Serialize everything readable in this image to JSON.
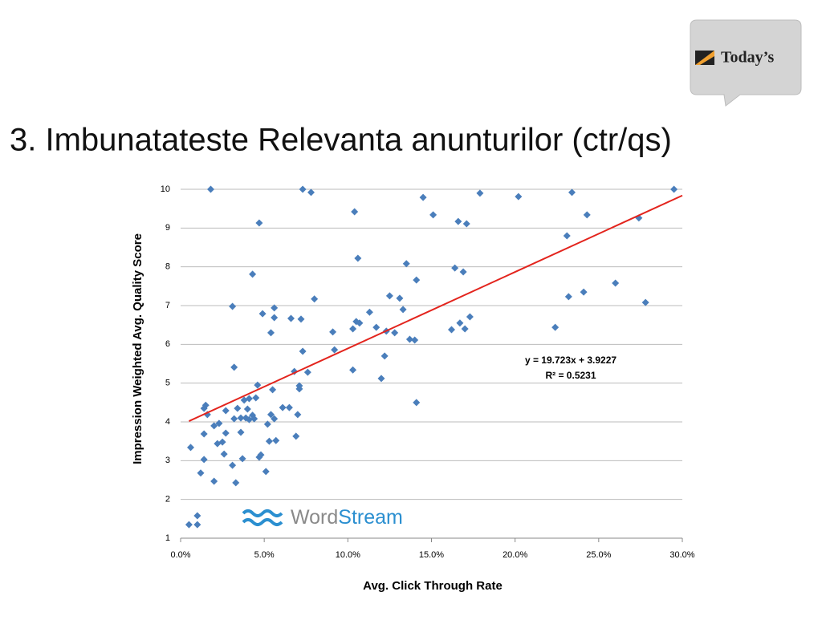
{
  "slide_title": "3. Imbunatateste Relevanta anunturilor (ctr/qs)",
  "logo_text": "Today’s",
  "watermark": [
    "Word",
    "Stream"
  ],
  "chart_data": {
    "type": "scatter",
    "x_label": "Avg. Click Through Rate",
    "y_label": "Impression Weighted Avg. Quality Score",
    "xlim": [
      0,
      30
    ],
    "ylim": [
      1,
      10
    ],
    "xticks": [
      {
        "value": 0,
        "label": "0.0%"
      },
      {
        "value": 5,
        "label": "5.0%"
      },
      {
        "value": 10,
        "label": "10.0%"
      },
      {
        "value": 15,
        "label": "15.0%"
      },
      {
        "value": 20,
        "label": "20.0%"
      },
      {
        "value": 25,
        "label": "25.0%"
      },
      {
        "value": 30,
        "label": "30.0%"
      }
    ],
    "yticks": [
      1,
      2,
      3,
      4,
      5,
      6,
      7,
      8,
      9,
      10
    ],
    "grid": true,
    "annotations": [
      "y = 19.723x + 3.9227",
      "R² = 0.5231"
    ],
    "series": [
      {
        "color": "#4a7ebb",
        "x": [
          0.5,
          1.0,
          1.0,
          0.6,
          1.2,
          1.4,
          1.4,
          1.4,
          1.5,
          1.6,
          1.8,
          2.0,
          2.0,
          2.2,
          2.3,
          2.5,
          2.6,
          2.7,
          2.7,
          3.1,
          3.1,
          3.2,
          3.3,
          3.2,
          3.4,
          3.6,
          3.6,
          3.7,
          3.8,
          3.9,
          4.0,
          4.1,
          4.1,
          4.3,
          4.3,
          4.4,
          4.5,
          4.6,
          4.7,
          4.8,
          4.7,
          4.9,
          5.1,
          5.2,
          5.4,
          5.3,
          5.4,
          5.5,
          5.6,
          5.6,
          5.6,
          5.7,
          6.1,
          6.5,
          6.6,
          6.8,
          6.9,
          7.0,
          7.1,
          7.1,
          7.2,
          7.3,
          7.3,
          7.6,
          7.8,
          8.0,
          9.1,
          9.2,
          10.3,
          10.3,
          10.4,
          10.5,
          10.6,
          10.7,
          11.3,
          11.7,
          12.0,
          12.2,
          12.3,
          12.5,
          12.8,
          13.1,
          13.3,
          13.5,
          13.7,
          14.0,
          14.1,
          14.1,
          14.5,
          15.1,
          16.2,
          16.4,
          16.6,
          16.7,
          16.9,
          17.0,
          17.1,
          17.3,
          17.9,
          20.2,
          22.4,
          23.1,
          23.2,
          23.4,
          24.1,
          24.3,
          26.0,
          27.4,
          27.8,
          29.5
        ],
        "values": [
          1.35,
          1.58,
          1.35,
          3.34,
          2.68,
          3.03,
          3.69,
          4.35,
          4.43,
          4.19,
          10.0,
          2.47,
          3.9,
          3.44,
          3.96,
          3.48,
          3.17,
          3.71,
          4.29,
          2.88,
          6.98,
          5.41,
          2.43,
          4.08,
          4.35,
          3.73,
          4.1,
          3.05,
          4.56,
          4.1,
          4.33,
          4.6,
          4.06,
          4.17,
          7.81,
          4.08,
          4.62,
          4.95,
          3.09,
          3.15,
          9.13,
          6.79,
          2.72,
          3.94,
          4.19,
          3.5,
          6.3,
          4.83,
          4.08,
          6.94,
          6.69,
          3.52,
          4.37,
          4.37,
          6.67,
          5.3,
          3.63,
          4.19,
          4.93,
          4.85,
          6.65,
          5.82,
          10.0,
          5.28,
          9.92,
          7.17,
          6.32,
          5.86,
          5.34,
          6.4,
          9.42,
          6.59,
          8.22,
          6.55,
          6.83,
          6.44,
          5.12,
          5.7,
          6.34,
          7.25,
          6.3,
          7.19,
          6.9,
          8.08,
          6.13,
          6.11,
          7.66,
          4.5,
          9.79,
          9.34,
          6.38,
          7.97,
          9.17,
          6.55,
          7.87,
          6.4,
          9.11,
          6.71,
          9.9,
          9.81,
          6.44,
          8.8,
          7.23,
          9.92,
          7.35,
          9.34,
          7.58,
          9.26,
          7.08,
          10.0
        ]
      }
    ],
    "trendline": {
      "x": [
        0.5,
        30
      ],
      "values": [
        4.02,
        9.84
      ],
      "color": "#e3241d"
    }
  }
}
